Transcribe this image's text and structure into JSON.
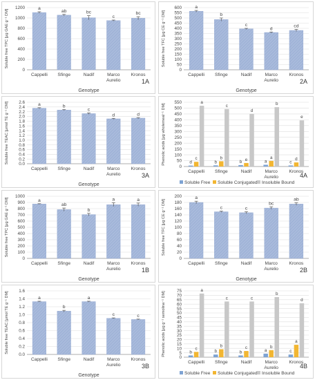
{
  "colors": {
    "bar_fill": "#a9bbdc",
    "bar_hatch": "#94a9d1",
    "soluble_free": "#7ea3d3",
    "soluble_conjugated": "#f2b632",
    "insoluble_bound": "#c8c8c8",
    "grid": "#dddddd",
    "axis": "#999999",
    "text": "#444444"
  },
  "chart_data": [
    {
      "id": "1A",
      "type": "bar",
      "panel_label": "1A",
      "categories": [
        "Cappelli",
        "Sfinge",
        "Nadif",
        "Marco Aurelio",
        "Kronos"
      ],
      "values": [
        1105,
        1055,
        1005,
        950,
        995
      ],
      "errors": [
        15,
        15,
        40,
        10,
        30
      ],
      "letters": [
        "a",
        "ab",
        "bc",
        "c",
        "bc"
      ],
      "ylabel": "Soluble free TPC [μg GAE g⁻¹ DM]",
      "xlabel": "Genotype",
      "ylim": [
        0,
        1200
      ],
      "yticks": [
        0,
        200,
        400,
        600,
        800,
        1000,
        1200
      ]
    },
    {
      "id": "2A",
      "type": "bar",
      "panel_label": "2A",
      "categories": [
        "Cappelli",
        "Sfinge",
        "Nadif",
        "Marco Aurelio",
        "Kronos"
      ],
      "values": [
        565,
        485,
        395,
        360,
        380
      ],
      "errors": [
        8,
        15,
        5,
        5,
        10
      ],
      "letters": [
        "a",
        "b",
        "c",
        "d",
        "cd"
      ],
      "ylabel": "Soluble free TFC [μg CE g⁻¹ DM]",
      "xlabel": "Genotype",
      "ylim": [
        0,
        600
      ],
      "yticks": [
        0,
        50,
        100,
        150,
        200,
        250,
        300,
        350,
        400,
        450,
        500,
        550,
        600
      ]
    },
    {
      "id": "3A",
      "type": "bar",
      "panel_label": "3A",
      "categories": [
        "Cappelli",
        "Sfinge",
        "Nadif",
        "Marco Aurelio",
        "Kronos"
      ],
      "values": [
        2.35,
        2.27,
        2.12,
        1.9,
        1.93
      ],
      "errors": [
        0.02,
        0.02,
        0.03,
        0.02,
        0.02
      ],
      "letters": [
        "a",
        "b",
        "c",
        "d",
        "d"
      ],
      "ylabel": "Soluble free TEAC [μmol TE g⁻¹ DM]",
      "xlabel": "Genotype",
      "ylim": [
        0,
        2.6
      ],
      "yticks": [
        0,
        0.2,
        0.4,
        0.6,
        0.8,
        1.0,
        1.2,
        1.4,
        1.6,
        1.8,
        2.0,
        2.2,
        2.4,
        2.6
      ]
    },
    {
      "id": "4A",
      "type": "bar",
      "panel_label": "4A",
      "categories": [
        "Cappelli",
        "Sfinge",
        "Nadif",
        "Marco Aurelio",
        "Kronos"
      ],
      "series": [
        {
          "name": "Soluble Free",
          "values": [
            8,
            10,
            12,
            15,
            9
          ],
          "letters": [
            "d",
            "b",
            "b",
            "a",
            "c"
          ],
          "color": "#7ea3d3"
        },
        {
          "name": "Soluble Conjugated",
          "values": [
            40,
            45,
            30,
            48,
            35
          ],
          "letters": [
            "c",
            "b",
            "e",
            "a",
            "d"
          ],
          "color": "#f2b632"
        },
        {
          "name": "Insoluble Bound",
          "values": [
            520,
            492,
            450,
            508,
            395
          ],
          "letters": [
            "a",
            "c",
            "d",
            "b",
            "e"
          ],
          "color": "#c8c8c8"
        }
      ],
      "ylabel": "Phenolic acids [μg wholemeal⁻¹ DM]",
      "xlabel": "",
      "ylim": [
        0,
        550
      ],
      "yticks": [
        0,
        50,
        100,
        150,
        200,
        250,
        300,
        350,
        400,
        450,
        500,
        550
      ],
      "legend": "bottom"
    },
    {
      "id": "1B",
      "type": "bar",
      "panel_label": "1B",
      "categories": [
        "Cappelli",
        "Sfinge",
        "Nadif",
        "Marco Aurelio",
        "Kronos"
      ],
      "values": [
        875,
        785,
        705,
        865,
        865
      ],
      "errors": [
        5,
        25,
        20,
        30,
        25
      ],
      "letters": [
        "a",
        "ab",
        "b",
        "a",
        "a"
      ],
      "ylabel": "Soluble free TPC [μg GAE g⁻¹ DM]",
      "xlabel": "Genotype",
      "ylim": [
        0,
        1000
      ],
      "yticks": [
        0,
        100,
        200,
        300,
        400,
        500,
        600,
        700,
        800,
        900,
        1000
      ]
    },
    {
      "id": "2B",
      "type": "bar",
      "panel_label": "2B",
      "categories": [
        "Cappelli",
        "Sfinge",
        "Nadif",
        "Marco Aurelio",
        "Kronos"
      ],
      "values": [
        180,
        150,
        147,
        162,
        175
      ],
      "errors": [
        4,
        2,
        3,
        4,
        4
      ],
      "letters": [
        "a",
        "c",
        "c",
        "bc",
        "ab"
      ],
      "ylabel": "Soluble free TFC [μg CE g⁻¹ DM]",
      "xlabel": "Genotype",
      "ylim": [
        0,
        200
      ],
      "yticks": [
        0,
        20,
        40,
        60,
        80,
        100,
        120,
        140,
        160,
        180,
        200
      ]
    },
    {
      "id": "3B",
      "type": "bar",
      "panel_label": "3B",
      "categories": [
        "Cappelli",
        "Sfinge",
        "Nadif",
        "Marco Aurelio",
        "Kronos"
      ],
      "values": [
        1.33,
        1.09,
        1.33,
        0.91,
        0.88
      ],
      "errors": [
        0.01,
        0.02,
        0.01,
        0.01,
        0.01
      ],
      "letters": [
        "a",
        "b",
        "a",
        "c",
        "c"
      ],
      "ylabel": "Soluble free TEAC [μmol TE g⁻¹ DM]",
      "xlabel": "Genotype",
      "ylim": [
        0,
        1.6
      ],
      "yticks": [
        0,
        0.2,
        0.4,
        0.6,
        0.8,
        1.0,
        1.2,
        1.4,
        1.6
      ]
    },
    {
      "id": "4B",
      "type": "bar",
      "panel_label": "4B",
      "categories": [
        "Cappelli",
        "Sfinge",
        "Nadif",
        "Marco Aurelio",
        "Kronos"
      ],
      "series": [
        {
          "name": "Soluble Free",
          "values": [
            2,
            3,
            2,
            4,
            3
          ],
          "letters": [
            "b",
            "b",
            "b",
            "a",
            "c"
          ],
          "color": "#7ea3d3"
        },
        {
          "name": "Soluble Conjugated",
          "values": [
            6,
            9,
            7,
            8,
            14
          ],
          "letters": [
            "c",
            "b",
            "c",
            "b",
            "a"
          ],
          "color": "#f2b632"
        },
        {
          "name": "Insoluble Bound",
          "values": [
            72,
            63,
            63,
            68,
            61
          ],
          "letters": [
            "a",
            "c",
            "c",
            "b",
            "d"
          ],
          "color": "#c8c8c8"
        }
      ],
      "ylabel": "Phenolic acids [μg g⁻¹ semolina⁻¹ DM]",
      "xlabel": "",
      "ylim": [
        0,
        75
      ],
      "yticks": [
        0,
        5,
        10,
        15,
        20,
        25,
        30,
        35,
        40,
        45,
        50,
        55,
        60,
        65,
        70,
        75
      ],
      "legend": "bottom"
    }
  ]
}
